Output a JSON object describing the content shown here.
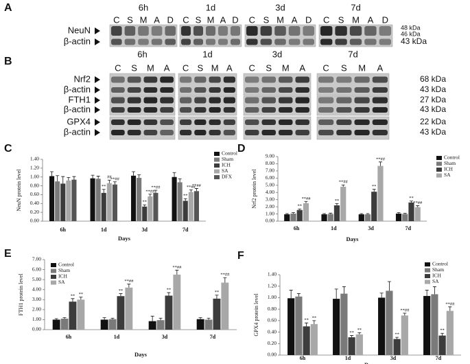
{
  "blots": [
    {
      "panel": "A",
      "times": [
        "6h",
        "1d",
        "3d",
        "7d"
      ],
      "lanes": [
        "C",
        "S",
        "M",
        "A",
        "D"
      ],
      "rows": [
        "NeuN",
        "β-actin"
      ],
      "weights": [
        "48 kDa",
        "46 kDa",
        "43 kDa"
      ]
    },
    {
      "panel": "B",
      "times": [
        "6h",
        "1d",
        "3d",
        "7d"
      ],
      "lanes": [
        "C",
        "S",
        "M",
        "A"
      ],
      "rows": [
        "Nrf2",
        "β-actin",
        "FTH1",
        "β-actin",
        "GPX4",
        "β-actin"
      ],
      "weights": [
        "68 kDa",
        "43 kDa",
        "27 kDa",
        "43 kDa",
        "22 kDa",
        "43 kDa"
      ]
    }
  ],
  "chart_data": [
    {
      "type": "bar",
      "panel": "C",
      "ylabel": "NeuN protein level",
      "xlabel": "Days",
      "legend": "upper right",
      "categories": [
        "6h",
        "1d",
        "3d",
        "7d"
      ],
      "ylim": [
        0,
        1.4
      ],
      "yticks": [
        {
          "value": 0,
          "label": "0.00"
        },
        {
          "value": 0.2,
          "label": "0.20"
        },
        {
          "value": 0.4,
          "label": "0.40"
        },
        {
          "value": 0.6,
          "label": "0.60"
        },
        {
          "value": 0.8,
          "label": "0.80"
        },
        {
          "value": 1,
          "label": "1.00"
        },
        {
          "value": 1.2,
          "label": "1.20"
        },
        {
          "value": 1.4,
          "label": "1.40"
        }
      ],
      "series": [
        {
          "name": "Control",
          "color": "#111111",
          "values": [
            1.02,
            0.97,
            1.03,
            1.0
          ],
          "errors": [
            0.1,
            0.07,
            0.09,
            0.1
          ],
          "sig": [
            null,
            null,
            null,
            null
          ]
        },
        {
          "name": "Sham",
          "color": "#7a7a7a",
          "values": [
            0.9,
            0.96,
            0.98,
            0.88
          ],
          "errors": [
            0.13,
            0.06,
            0.07,
            0.08
          ],
          "sig": [
            null,
            null,
            null,
            null
          ]
        },
        {
          "name": "ICH",
          "color": "#3c3c3c",
          "values": [
            0.85,
            0.64,
            0.33,
            0.46
          ],
          "errors": [
            0.16,
            0.08,
            0.04,
            0.05
          ],
          "sig": [
            null,
            "**",
            "**",
            "**"
          ]
        },
        {
          "name": "SA",
          "color": "#a8a8a8",
          "values": [
            0.92,
            0.86,
            0.56,
            0.66
          ],
          "errors": [
            0.07,
            0.07,
            0.05,
            0.05
          ],
          "sig": [
            null,
            "##",
            "**##",
            "**##"
          ]
        },
        {
          "name": "DFX",
          "color": "#555555",
          "values": [
            0.94,
            0.83,
            0.64,
            0.68
          ],
          "errors": [
            0.07,
            0.06,
            0.06,
            0.06
          ],
          "sig": [
            null,
            "**##",
            "**##",
            "**##"
          ]
        }
      ]
    },
    {
      "type": "bar",
      "panel": "D",
      "ylabel": "Nrf2 protein level",
      "xlabel": "Days",
      "legend": "upper right",
      "categories": [
        "6h",
        "1d",
        "3d",
        "7d"
      ],
      "ylim": [
        0,
        9
      ],
      "yticks": [
        {
          "value": 0,
          "label": "0.00"
        },
        {
          "value": 1,
          "label": "1.00"
        },
        {
          "value": 2,
          "label": "2.00"
        },
        {
          "value": 3,
          "label": "3.00"
        },
        {
          "value": 4,
          "label": "4.00"
        },
        {
          "value": 5,
          "label": "5.00"
        },
        {
          "value": 6,
          "label": "6.00"
        },
        {
          "value": 7,
          "label": "7.00"
        },
        {
          "value": 8,
          "label": "8.00"
        },
        {
          "value": 9,
          "label": "9.00"
        }
      ],
      "series": [
        {
          "name": "Control",
          "color": "#111111",
          "values": [
            0.95,
            0.95,
            0.95,
            1.05
          ],
          "errors": [
            0.1,
            0.1,
            0.1,
            0.15
          ],
          "sig": [
            null,
            null,
            null,
            null
          ]
        },
        {
          "name": "Sham",
          "color": "#7a7a7a",
          "values": [
            1.05,
            1.0,
            0.95,
            1.0
          ],
          "errors": [
            0.15,
            0.12,
            0.1,
            0.1
          ],
          "sig": [
            null,
            null,
            null,
            null
          ]
        },
        {
          "name": "ICH",
          "color": "#3c3c3c",
          "values": [
            1.55,
            2.2,
            4.1,
            2.6
          ],
          "errors": [
            0.15,
            0.25,
            0.35,
            0.2
          ],
          "sig": [
            "**",
            "**",
            "**",
            "**"
          ]
        },
        {
          "name": "SA",
          "color": "#a8a8a8",
          "values": [
            2.5,
            4.8,
            7.7,
            1.95
          ],
          "errors": [
            0.25,
            0.25,
            0.55,
            0.2
          ],
          "sig": [
            "**##",
            "**##",
            "**##",
            "**##"
          ]
        }
      ]
    },
    {
      "type": "bar",
      "panel": "E",
      "ylabel": "FTH1 protein level",
      "xlabel": "Days",
      "legend": "upper left",
      "categories": [
        "6h",
        "1d",
        "3d",
        "7d"
      ],
      "ylim": [
        0,
        7
      ],
      "yticks": [
        {
          "value": 0,
          "label": "0.00"
        },
        {
          "value": 1,
          "label": "1.00"
        },
        {
          "value": 2,
          "label": "2.00"
        },
        {
          "value": 3,
          "label": "3.00"
        },
        {
          "value": 4,
          "label": "4.00"
        },
        {
          "value": 5,
          "label": "5.00"
        },
        {
          "value": 6,
          "label": "6.00"
        },
        {
          "value": 7,
          "label": "7.00"
        }
      ],
      "series": [
        {
          "name": "Control",
          "color": "#111111",
          "values": [
            1.0,
            1.0,
            0.85,
            1.05
          ],
          "errors": [
            0.1,
            0.2,
            0.5,
            0.15
          ],
          "sig": [
            null,
            null,
            null,
            null
          ]
        },
        {
          "name": "Sham",
          "color": "#7a7a7a",
          "values": [
            1.1,
            1.05,
            0.95,
            1.0
          ],
          "errors": [
            0.1,
            0.1,
            0.2,
            0.15
          ],
          "sig": [
            null,
            null,
            null,
            null
          ]
        },
        {
          "name": "ICH",
          "color": "#3c3c3c",
          "values": [
            2.8,
            3.35,
            3.4,
            3.1
          ],
          "errors": [
            0.3,
            0.25,
            0.3,
            0.35
          ],
          "sig": [
            "**",
            "**",
            "**",
            "**"
          ]
        },
        {
          "name": "SA",
          "color": "#a8a8a8",
          "values": [
            3.0,
            4.2,
            5.5,
            4.7
          ],
          "errors": [
            0.25,
            0.35,
            0.45,
            0.5
          ],
          "sig": [
            "**",
            "**##",
            "**##",
            "**##"
          ]
        }
      ]
    },
    {
      "type": "bar",
      "panel": "F",
      "ylabel": "GPX4 protein level",
      "xlabel": "Days",
      "legend": "upper right",
      "categories": [
        "6h",
        "1d",
        "3d",
        "7d"
      ],
      "ylim": [
        0,
        1.4
      ],
      "yticks": [
        {
          "value": 0,
          "label": "0.00"
        },
        {
          "value": 0.2,
          "label": "0.20"
        },
        {
          "value": 0.4,
          "label": "0.40"
        },
        {
          "value": 0.6,
          "label": "0.60"
        },
        {
          "value": 0.8,
          "label": "0.80"
        },
        {
          "value": 1,
          "label": "1.00"
        },
        {
          "value": 1.2,
          "label": "1.20"
        },
        {
          "value": 1.4,
          "label": "1.40"
        }
      ],
      "series": [
        {
          "name": "Control",
          "color": "#111111",
          "values": [
            0.99,
            0.98,
            1.0,
            1.03
          ],
          "errors": [
            0.14,
            0.17,
            0.08,
            0.1
          ],
          "sig": [
            null,
            null,
            null,
            null
          ]
        },
        {
          "name": "Sham",
          "color": "#7a7a7a",
          "values": [
            1.02,
            1.07,
            1.12,
            1.06
          ],
          "errors": [
            0.05,
            0.12,
            0.16,
            0.13
          ],
          "sig": [
            null,
            null,
            null,
            null
          ]
        },
        {
          "name": "ICH",
          "color": "#3c3c3c",
          "values": [
            0.5,
            0.31,
            0.28,
            0.34
          ],
          "errors": [
            0.06,
            0.03,
            0.03,
            0.04
          ],
          "sig": [
            "**",
            "**",
            "**",
            "**"
          ]
        },
        {
          "name": "SA",
          "color": "#a8a8a8",
          "values": [
            0.54,
            0.36,
            0.69,
            0.77
          ],
          "errors": [
            0.06,
            0.03,
            0.04,
            0.07
          ],
          "sig": [
            "**",
            "**",
            "**##",
            "**##"
          ]
        }
      ]
    }
  ]
}
